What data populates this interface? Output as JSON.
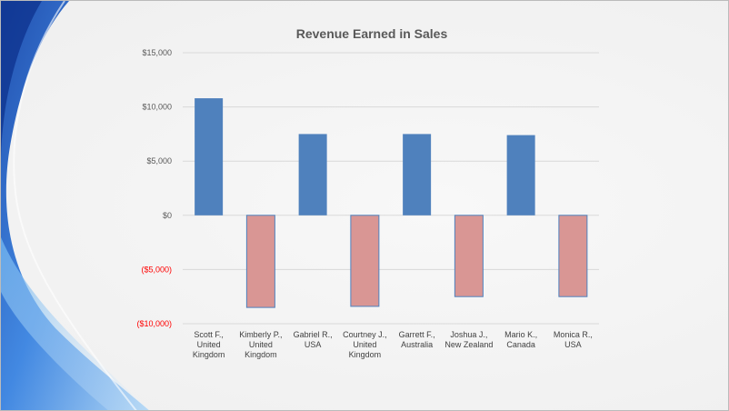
{
  "chart_data": {
    "type": "bar",
    "title": "Revenue Earned in Sales",
    "xlabel": "",
    "ylabel": "",
    "categories": [
      "Scott F., United Kingdom",
      "Kimberly P., United Kingdom",
      "Gabriel R., USA",
      "Courtney J., United Kingdom",
      "Garrett F., Australia",
      "Joshua J., New Zealand",
      "Mario K., Canada",
      "Monica R., USA"
    ],
    "category_lines": [
      [
        "Scott F.,",
        "United",
        "Kingdom"
      ],
      [
        "Kimberly P.,",
        "United",
        "Kingdom"
      ],
      [
        "Gabriel R.,",
        "USA"
      ],
      [
        "Courtney J.,",
        "United",
        "Kingdom"
      ],
      [
        "Garrett F.,",
        "Australia"
      ],
      [
        "Joshua J.,",
        "New Zealand"
      ],
      [
        "Mario K.,",
        "Canada"
      ],
      [
        "Monica R.,",
        "USA"
      ]
    ],
    "values": [
      10800,
      -8500,
      7500,
      -8400,
      7500,
      -7500,
      7400,
      -7500
    ],
    "ylim": [
      -10000,
      15000
    ],
    "yticks": [
      15000,
      10000,
      5000,
      0,
      -5000,
      -10000
    ],
    "ytick_labels": [
      "$15,000",
      "$10,000",
      "$5,000",
      "$0",
      "($5,000)",
      "($10,000)"
    ],
    "grid": true,
    "legend": "none",
    "colors": {
      "positive": "#4f81bd",
      "negative": "#d99694",
      "negative_border": "#4f81bd",
      "negative_tick_label": "#ff0000"
    }
  }
}
